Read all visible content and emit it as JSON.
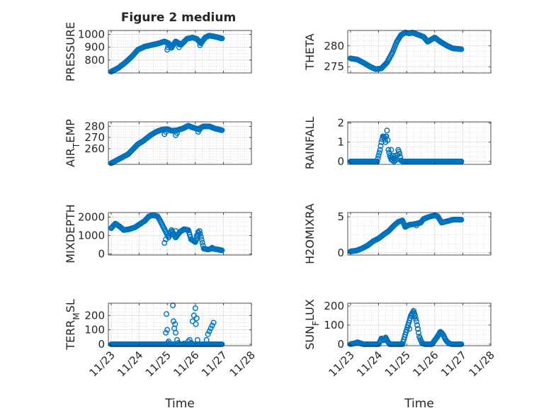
{
  "figure": {
    "title": "Figure 2 medium"
  },
  "colors": {
    "marker": "#0072BD",
    "axis": "#262626",
    "grid": "#C8C8C8",
    "background": "#FFFFFF"
  },
  "chart_data": [
    {
      "type": "scatter",
      "id": "pressure",
      "title": "Figure 2 medium",
      "ylabel": "PRESSURE",
      "ylabel_parts": [
        {
          "t": "PRESSURE"
        }
      ],
      "xlabel": "",
      "ylim": [
        700,
        1030
      ],
      "yticks": [
        800,
        900,
        1000
      ],
      "xticks": [
        "11/23",
        "11/24",
        "11/25",
        "11/26",
        "11/27",
        "11/28"
      ],
      "show_xticklabels": false,
      "grid": true,
      "minor_grid": true,
      "shape": [
        [
          0.0,
          710
        ],
        [
          0.25,
          738
        ],
        [
          0.5,
          780
        ],
        [
          0.75,
          830
        ],
        [
          0.95,
          880
        ],
        [
          1.2,
          905
        ],
        [
          1.5,
          920
        ],
        [
          1.7,
          930
        ],
        [
          1.9,
          945
        ],
        [
          2.05,
          930
        ],
        [
          2.15,
          895
        ],
        [
          2.3,
          945
        ],
        [
          2.5,
          920
        ],
        [
          2.7,
          965
        ],
        [
          2.9,
          975
        ],
        [
          3.05,
          965
        ],
        [
          3.2,
          930
        ],
        [
          3.35,
          975
        ],
        [
          3.5,
          990
        ],
        [
          3.7,
          982
        ],
        [
          3.95,
          968
        ]
      ],
      "extra_points": [
        [
          2.0,
          880
        ],
        [
          2.02,
          900
        ],
        [
          2.08,
          910
        ],
        [
          2.42,
          900
        ],
        [
          2.45,
          920
        ],
        [
          3.17,
          915
        ],
        [
          3.2,
          935
        ]
      ]
    },
    {
      "type": "scatter",
      "id": "theta",
      "ylabel": "THETA",
      "ylabel_parts": [
        {
          "t": "THETA"
        }
      ],
      "xlabel": "",
      "ylim": [
        273.5,
        283.7
      ],
      "yticks": [
        275,
        280
      ],
      "xticks": [
        "11/23",
        "11/24",
        "11/25",
        "11/26",
        "11/27",
        "11/28"
      ],
      "show_xticklabels": false,
      "grid": true,
      "minor_grid": true,
      "shape": [
        [
          0.0,
          277.0
        ],
        [
          0.25,
          276.7
        ],
        [
          0.45,
          276.0
        ],
        [
          0.7,
          275.0
        ],
        [
          0.9,
          274.4
        ],
        [
          1.1,
          274.6
        ],
        [
          1.3,
          276.0
        ],
        [
          1.5,
          278.5
        ],
        [
          1.65,
          281.0
        ],
        [
          1.8,
          282.6
        ],
        [
          1.95,
          283.2
        ],
        [
          2.1,
          283.0
        ],
        [
          2.2,
          283.2
        ],
        [
          2.4,
          282.7
        ],
        [
          2.6,
          282.2
        ],
        [
          2.75,
          281.0
        ],
        [
          3.0,
          282.0
        ],
        [
          3.2,
          281.0
        ],
        [
          3.45,
          280.0
        ],
        [
          3.65,
          279.4
        ],
        [
          3.95,
          279.2
        ]
      ],
      "extra_points": []
    },
    {
      "type": "scatter",
      "id": "airtemp",
      "ylabel": "AIR_TEMP",
      "ylabel_parts": [
        {
          "t": "AIR"
        },
        {
          "t": "T",
          "sub": true
        },
        {
          "t": "EMP"
        }
      ],
      "xlabel": "",
      "ylim": [
        246,
        284
      ],
      "yticks": [
        260,
        270,
        280
      ],
      "xticks": [
        "11/23",
        "11/24",
        "11/25",
        "11/26",
        "11/27",
        "11/28"
      ],
      "show_xticklabels": false,
      "grid": true,
      "minor_grid": true,
      "shape": [
        [
          0.0,
          247
        ],
        [
          0.3,
          251
        ],
        [
          0.6,
          255
        ],
        [
          0.8,
          260
        ],
        [
          0.95,
          264
        ],
        [
          1.15,
          267
        ],
        [
          1.4,
          272
        ],
        [
          1.6,
          275
        ],
        [
          1.8,
          277
        ],
        [
          2.0,
          277.5
        ],
        [
          2.15,
          276
        ],
        [
          2.35,
          276.5
        ],
        [
          2.55,
          278
        ],
        [
          2.75,
          280.5
        ],
        [
          2.9,
          279
        ],
        [
          3.1,
          277.5
        ],
        [
          3.3,
          280
        ],
        [
          3.5,
          280
        ],
        [
          3.7,
          278
        ],
        [
          3.95,
          276.5
        ]
      ],
      "extra_points": [
        [
          1.9,
          273
        ],
        [
          1.95,
          275
        ],
        [
          2.3,
          272
        ],
        [
          2.35,
          274
        ],
        [
          3.1,
          275
        ],
        [
          3.15,
          277
        ]
      ]
    },
    {
      "type": "scatter",
      "id": "rainfall",
      "ylabel": "RAINFALL",
      "ylabel_parts": [
        {
          "t": "RAINFALL"
        }
      ],
      "xlabel": "",
      "ylim": [
        -0.15,
        2.05
      ],
      "yticks": [
        0,
        1,
        2
      ],
      "xticks": [
        "11/23",
        "11/24",
        "11/25",
        "11/26",
        "11/27",
        "11/28"
      ],
      "show_xticklabels": false,
      "grid": true,
      "minor_grid": true,
      "shape": [
        [
          0.0,
          0
        ],
        [
          0.95,
          0
        ],
        [
          1.0,
          0.3
        ],
        [
          1.05,
          0.6
        ],
        [
          1.1,
          1.0
        ],
        [
          1.15,
          1.3
        ],
        [
          1.2,
          1.25
        ],
        [
          1.25,
          1.0
        ],
        [
          1.3,
          1.6
        ],
        [
          1.35,
          0.6
        ],
        [
          1.4,
          0.3
        ],
        [
          1.45,
          0.1
        ],
        [
          1.5,
          0.3
        ],
        [
          1.55,
          0
        ],
        [
          1.6,
          0.3
        ],
        [
          1.65,
          0.1
        ],
        [
          1.7,
          0.6
        ],
        [
          1.75,
          0.4
        ],
        [
          1.8,
          0.05
        ],
        [
          1.85,
          0
        ],
        [
          3.95,
          0
        ]
      ],
      "extra_points": [
        [
          1.25,
          1.3
        ],
        [
          1.45,
          0.6
        ],
        [
          1.5,
          0.05
        ],
        [
          1.6,
          0.05
        ]
      ]
    },
    {
      "type": "scatter",
      "id": "mixdepth",
      "ylabel": "MIXDEPTH",
      "ylabel_parts": [
        {
          "t": "MIXDEPTH"
        }
      ],
      "xlabel": "",
      "ylim": [
        -50,
        2250
      ],
      "yticks": [
        0,
        1000,
        2000
      ],
      "xticks": [
        "11/23",
        "11/24",
        "11/25",
        "11/26",
        "11/27",
        "11/28"
      ],
      "show_xticklabels": false,
      "grid": true,
      "minor_grid": true,
      "shape": [
        [
          0.0,
          1400
        ],
        [
          0.15,
          1650
        ],
        [
          0.3,
          1500
        ],
        [
          0.45,
          1300
        ],
        [
          0.65,
          1350
        ],
        [
          0.85,
          1450
        ],
        [
          1.0,
          1600
        ],
        [
          1.2,
          1800
        ],
        [
          1.35,
          2050
        ],
        [
          1.5,
          2100
        ],
        [
          1.65,
          2050
        ],
        [
          1.75,
          1800
        ],
        [
          1.85,
          1500
        ],
        [
          1.95,
          1200
        ],
        [
          2.05,
          900
        ],
        [
          2.15,
          1300
        ],
        [
          2.3,
          900
        ],
        [
          2.45,
          1200
        ],
        [
          2.6,
          1350
        ],
        [
          2.75,
          1300
        ],
        [
          2.85,
          800
        ],
        [
          3.0,
          650
        ],
        [
          3.15,
          1250
        ],
        [
          3.3,
          300
        ],
        [
          3.45,
          250
        ],
        [
          3.6,
          300
        ],
        [
          3.8,
          250
        ],
        [
          3.95,
          200
        ]
      ],
      "extra_points": [
        [
          1.9,
          600
        ],
        [
          1.95,
          800
        ],
        [
          2.2,
          1050
        ],
        [
          2.3,
          1250
        ],
        [
          3.05,
          1000
        ],
        [
          3.1,
          1200
        ],
        [
          3.6,
          350
        ]
      ]
    },
    {
      "type": "scatter",
      "id": "h2omixra",
      "ylabel": "H2OMIXRA",
      "ylabel_parts": [
        {
          "t": "H2OMIXRA"
        }
      ],
      "xlabel": "",
      "ylim": [
        -0.3,
        5.6
      ],
      "yticks": [
        0,
        5
      ],
      "xticks": [
        "11/23",
        "11/24",
        "11/25",
        "11/26",
        "11/27",
        "11/28"
      ],
      "show_xticklabels": false,
      "grid": true,
      "minor_grid": true,
      "shape": [
        [
          0.0,
          0.2
        ],
        [
          0.2,
          0.3
        ],
        [
          0.4,
          0.6
        ],
        [
          0.6,
          1.0
        ],
        [
          0.8,
          1.6
        ],
        [
          1.0,
          2.0
        ],
        [
          1.2,
          2.6
        ],
        [
          1.35,
          3.0
        ],
        [
          1.55,
          3.8
        ],
        [
          1.7,
          4.3
        ],
        [
          1.85,
          4.5
        ],
        [
          1.95,
          3.6
        ],
        [
          2.1,
          3.9
        ],
        [
          2.3,
          4.0
        ],
        [
          2.5,
          4.2
        ],
        [
          2.6,
          4.7
        ],
        [
          2.8,
          5.0
        ],
        [
          3.0,
          5.2
        ],
        [
          3.1,
          5.1
        ],
        [
          3.25,
          4.2
        ],
        [
          3.45,
          4.4
        ],
        [
          3.65,
          4.6
        ],
        [
          3.95,
          4.6
        ]
      ],
      "extra_points": [
        [
          2.35,
          3.8
        ],
        [
          2.4,
          4.1
        ]
      ]
    },
    {
      "type": "scatter",
      "id": "terr_msl",
      "ylabel": "TERR_MSL",
      "ylabel_parts": [
        {
          "t": "TERR"
        },
        {
          "t": "M",
          "sub": true
        },
        {
          "t": "SL"
        }
      ],
      "xlabel": "Time",
      "ylim": [
        -10,
        285
      ],
      "yticks": [
        0,
        100,
        200
      ],
      "xticks": [
        "11/23",
        "11/24",
        "11/25",
        "11/26",
        "11/27",
        "11/28"
      ],
      "show_xticklabels": true,
      "grid": true,
      "minor_grid": true,
      "shape": [
        [
          0.0,
          0
        ],
        [
          1.85,
          0
        ],
        [
          3.95,
          0
        ]
      ],
      "extra_points": [
        [
          1.95,
          80
        ],
        [
          1.97,
          210
        ],
        [
          2.0,
          100
        ],
        [
          2.02,
          10
        ],
        [
          2.05,
          20
        ],
        [
          2.08,
          0
        ],
        [
          2.2,
          270
        ],
        [
          2.22,
          160
        ],
        [
          2.25,
          110
        ],
        [
          2.28,
          140
        ],
        [
          2.3,
          80
        ],
        [
          2.35,
          30
        ],
        [
          2.4,
          10
        ],
        [
          2.5,
          0
        ],
        [
          2.6,
          5
        ],
        [
          2.7,
          0
        ],
        [
          2.75,
          20
        ],
        [
          2.8,
          30
        ],
        [
          2.85,
          10
        ],
        [
          2.9,
          160
        ],
        [
          2.95,
          200
        ],
        [
          3.0,
          250
        ],
        [
          3.02,
          140
        ],
        [
          3.05,
          180
        ],
        [
          3.08,
          30
        ],
        [
          3.1,
          0
        ],
        [
          3.2,
          0
        ],
        [
          3.3,
          0
        ],
        [
          3.4,
          30
        ],
        [
          3.45,
          70
        ],
        [
          3.5,
          90
        ],
        [
          3.55,
          110
        ],
        [
          3.6,
          130
        ],
        [
          3.65,
          150
        ]
      ]
    },
    {
      "type": "scatter",
      "id": "sunflux",
      "ylabel": "SUN_FLUX",
      "ylabel_parts": [
        {
          "t": "SUN"
        },
        {
          "t": "F",
          "sub": true
        },
        {
          "t": "LUX"
        }
      ],
      "xlabel": "Time",
      "ylim": [
        -8,
        215
      ],
      "yticks": [
        0,
        100,
        200
      ],
      "xticks": [
        "11/23",
        "11/24",
        "11/25",
        "11/26",
        "11/27",
        "11/28"
      ],
      "show_xticklabels": true,
      "grid": true,
      "minor_grid": true,
      "shape": [
        [
          0.0,
          0
        ],
        [
          0.15,
          5
        ],
        [
          0.25,
          10
        ],
        [
          0.35,
          5
        ],
        [
          0.45,
          0
        ],
        [
          1.0,
          0
        ],
        [
          1.1,
          30
        ],
        [
          1.18,
          20
        ],
        [
          1.25,
          35
        ],
        [
          1.32,
          15
        ],
        [
          1.4,
          0
        ],
        [
          1.85,
          0
        ],
        [
          1.95,
          50
        ],
        [
          2.05,
          100
        ],
        [
          2.15,
          150
        ],
        [
          2.25,
          175
        ],
        [
          2.35,
          120
        ],
        [
          2.45,
          40
        ],
        [
          2.55,
          5
        ],
        [
          2.65,
          0
        ],
        [
          2.9,
          0
        ],
        [
          3.0,
          20
        ],
        [
          3.1,
          40
        ],
        [
          3.2,
          65
        ],
        [
          3.3,
          50
        ],
        [
          3.4,
          20
        ],
        [
          3.5,
          5
        ],
        [
          3.6,
          0
        ],
        [
          3.95,
          0
        ]
      ],
      "extra_points": [
        [
          2.1,
          80
        ],
        [
          2.2,
          160
        ],
        [
          2.3,
          150
        ],
        [
          2.4,
          80
        ],
        [
          3.25,
          60
        ]
      ]
    }
  ]
}
